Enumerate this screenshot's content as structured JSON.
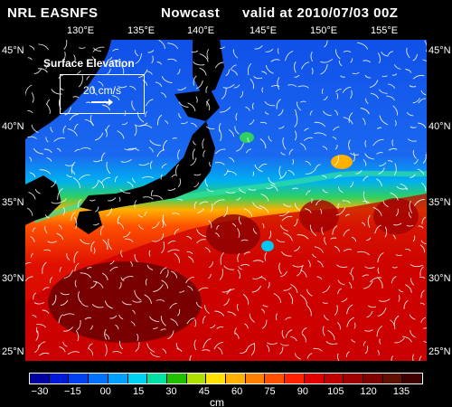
{
  "header": {
    "source": "NRL EASNFS",
    "product": "Nowcast",
    "valid": "valid at 2010/07/03 00Z"
  },
  "axes": {
    "lon_labels": [
      "130°E",
      "135°E",
      "140°E",
      "145°E",
      "150°E",
      "155°E"
    ],
    "lat_labels": [
      "45°N",
      "40°N",
      "35°N",
      "30°N",
      "25°N"
    ]
  },
  "legend": {
    "field": "Surface Elevation",
    "reference_vector": "20 cm/s"
  },
  "colorbar": {
    "labels": [
      "−30",
      "−15",
      "00",
      "15",
      "30",
      "45",
      "60",
      "75",
      "90",
      "105",
      "120",
      "135"
    ],
    "units": "cm",
    "colors": [
      "#0000a0",
      "#0018d8",
      "#0040f0",
      "#0070ff",
      "#00a0ff",
      "#00d0f0",
      "#00e0a0",
      "#20c000",
      "#b0e000",
      "#ffe000",
      "#ffb000",
      "#ff8000",
      "#ff5000",
      "#ff2000",
      "#e00000",
      "#c00000",
      "#a00000",
      "#800000",
      "#601000",
      "#400000"
    ]
  },
  "map_colors": {
    "land": "#000000",
    "north_low": "#1050e8",
    "transition_cyan": "#00c8f0",
    "transition_green": "#30d060",
    "south_high_orange": "#ff8000",
    "south_high_red": "#e01000",
    "warm_core_dark": "#6a0000"
  },
  "icons": [
    "current-vector-icon",
    "reference-arrow-icon"
  ]
}
